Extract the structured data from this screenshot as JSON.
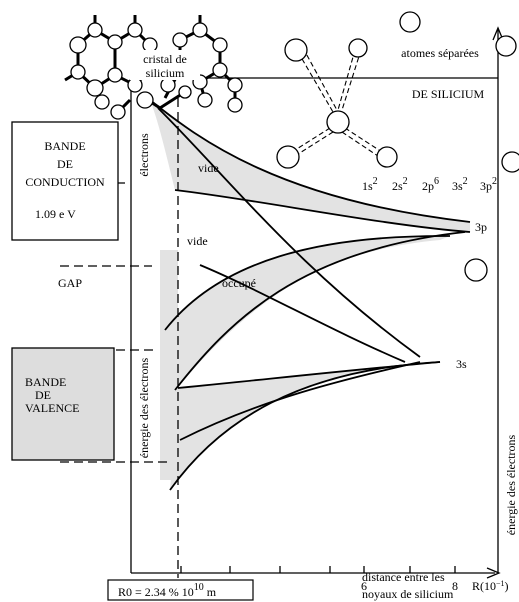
{
  "crystal_label": [
    "cristal de",
    "silicium"
  ],
  "atoms_label": "atomes séparées",
  "silicium_label": "DE SILICIUM",
  "electrons_label": "électrons",
  "conduction_band": [
    "BANDE",
    "DE",
    "CONDUCTION"
  ],
  "gap_energy": "1.09 e V",
  "gap_label": "GAP",
  "valence_band": [
    "BANDE",
    "DE",
    "VALENCE"
  ],
  "energy_label_left": "énergie des électrons",
  "energy_label_right": "énergie des électrons",
  "regions": [
    "vide",
    "vide",
    "occupé"
  ],
  "orbitals": [
    {
      "base": "1s",
      "sup": "2"
    },
    {
      "base": "2s",
      "sup": "2"
    },
    {
      "base": "2p",
      "sup": "6"
    },
    {
      "base": "3s",
      "sup": "2"
    },
    {
      "base": "3p",
      "sup": "2"
    }
  ],
  "level_labels": [
    "3p",
    "3s"
  ],
  "x_ticks": [
    "6",
    "8"
  ],
  "x_unit": {
    "text": "R(10",
    "sup": "−1",
    "end": ")"
  },
  "equilibrium": {
    "text": "R0 = 2.34 % 10",
    "sup": "10",
    "end": " m"
  },
  "x_axis_label": [
    "distance entre les",
    "noyaux de silicium"
  ]
}
